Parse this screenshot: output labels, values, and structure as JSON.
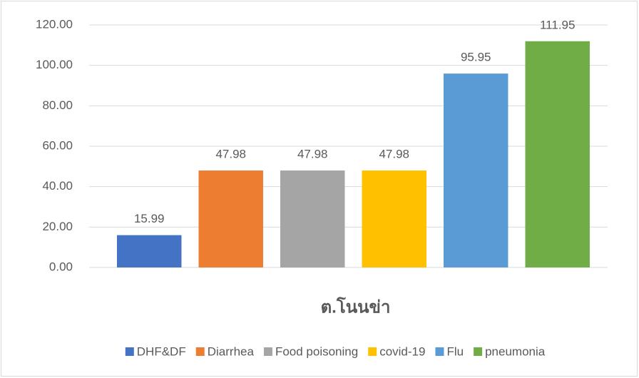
{
  "chart_data": {
    "type": "bar",
    "categories": [
      "ต.โนนข่า"
    ],
    "series": [
      {
        "name": "DHF&DF",
        "color": "#4472c4",
        "values": [
          15.99
        ]
      },
      {
        "name": "Diarrhea",
        "color": "#ed7d31",
        "values": [
          47.98
        ]
      },
      {
        "name": "Food poisoning",
        "color": "#a5a5a5",
        "values": [
          47.98
        ]
      },
      {
        "name": "covid-19",
        "color": "#ffc000",
        "values": [
          47.98
        ]
      },
      {
        "name": "Flu",
        "color": "#5b9bd5",
        "values": [
          95.95
        ]
      },
      {
        "name": "pneumonia",
        "color": "#70ad47",
        "values": [
          111.95
        ]
      }
    ],
    "ylim": [
      0,
      120
    ],
    "yticks": [
      {
        "value": 0,
        "label": "0.00"
      },
      {
        "value": 20,
        "label": "20.00"
      },
      {
        "value": 40,
        "label": "40.00"
      },
      {
        "value": 60,
        "label": "60.00"
      },
      {
        "value": 80,
        "label": "80.00"
      },
      {
        "value": 100,
        "label": "100.00"
      },
      {
        "value": 120,
        "label": "120.00"
      }
    ],
    "grid": true,
    "legend": "bottom"
  }
}
